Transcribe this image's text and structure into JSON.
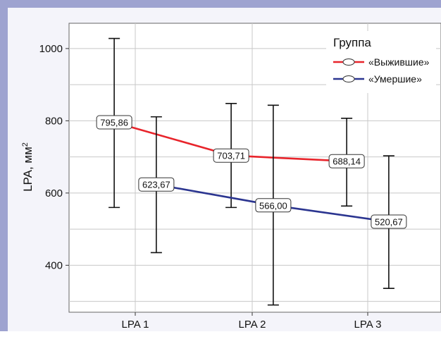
{
  "chart_data": {
    "type": "line",
    "categories": [
      "LPA 1",
      "LPA 2",
      "LPA 3"
    ],
    "ylabel": "LPA, мм",
    "ylabel_superscript": "2",
    "ylim": [
      270,
      1070
    ],
    "yticks": [
      400,
      600,
      800,
      1000
    ],
    "grid": true,
    "legend": {
      "title": "Группа",
      "position": "top-right"
    },
    "series": [
      {
        "name": "«Выжившие»",
        "color": "#e8242b",
        "x_offset": -0.45,
        "points": [
          {
            "category": "LPA 1",
            "mean": 795.86,
            "label": "795,86",
            "low": 560,
            "high": 1028
          },
          {
            "category": "LPA 2",
            "mean": 703.71,
            "label": "703,71",
            "low": 560,
            "high": 848
          },
          {
            "category": "LPA 3",
            "mean": 688.14,
            "label": "688,14",
            "low": 564,
            "high": 807
          }
        ]
      },
      {
        "name": "«Умершие»",
        "color": "#2b3590",
        "x_offset": 0.45,
        "points": [
          {
            "category": "LPA 1",
            "mean": 623.67,
            "label": "623,67",
            "low": 435,
            "high": 811
          },
          {
            "category": "LPA 2",
            "mean": 566.0,
            "label": "566,00",
            "low": 290,
            "high": 843
          },
          {
            "category": "LPA 3",
            "mean": 520.67,
            "label": "520,67",
            "low": 336,
            "high": 703
          }
        ]
      }
    ]
  }
}
